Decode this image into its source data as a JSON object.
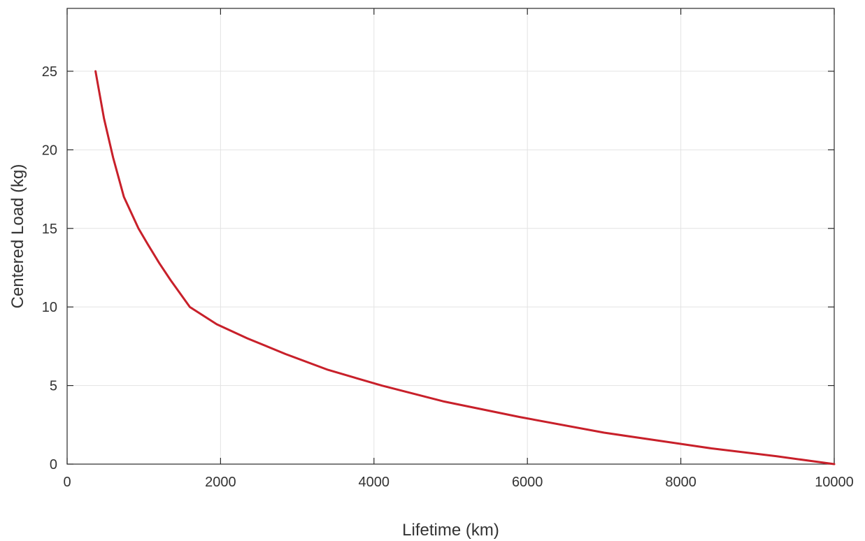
{
  "chart_data": {
    "type": "line",
    "xlabel": "Lifetime (km)",
    "ylabel": "Centered Load (kg)",
    "xlim": [
      0,
      10000
    ],
    "ylim": [
      0,
      29
    ],
    "x_ticks": [
      0,
      2000,
      4000,
      6000,
      8000,
      10000
    ],
    "y_ticks": [
      0,
      5,
      10,
      15,
      20,
      25
    ],
    "grid": true,
    "series": [
      {
        "color": "#c8202a",
        "x": [
          370,
          480,
          600,
          740,
          930,
          1050,
          1200,
          1350,
          1600,
          1950,
          2350,
          2850,
          3400,
          4100,
          4900,
          5900,
          7000,
          8400,
          9250,
          10000
        ],
        "y": [
          25,
          22,
          19.5,
          17,
          15,
          14,
          12.8,
          11.7,
          10,
          8.9,
          8,
          7,
          6,
          5,
          4,
          3,
          2,
          1,
          0.5,
          0
        ]
      }
    ]
  }
}
